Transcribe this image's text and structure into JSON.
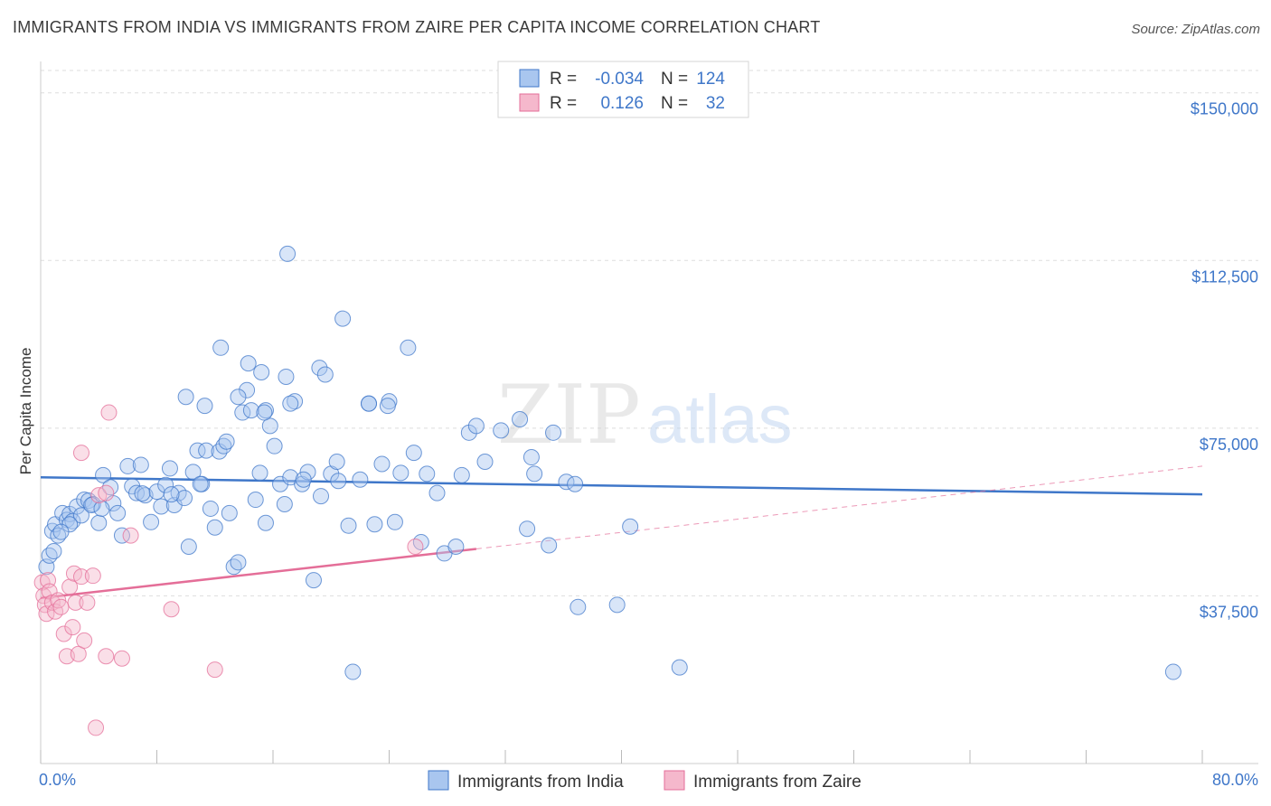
{
  "title": "IMMIGRANTS FROM INDIA VS IMMIGRANTS FROM ZAIRE PER CAPITA INCOME CORRELATION CHART",
  "source": "Source: ZipAtlas.com",
  "watermark": {
    "zip": "ZIP",
    "atlas": "atlas"
  },
  "colors": {
    "india": "#3f77c9",
    "india_fill": "#a9c6ef",
    "zaire": "#e46e98",
    "zaire_fill": "#f5b8cc",
    "grid": "#dddddd",
    "axis_text": "#3f77c9"
  },
  "legend": {
    "rows": [
      {
        "series": "india",
        "r_label": "R =",
        "r_value": "-0.034",
        "n_label": "N =",
        "n_value": "124"
      },
      {
        "series": "zaire",
        "r_label": "R =",
        "r_value": "0.126",
        "n_label": "N =",
        "n_value": "32"
      }
    ]
  },
  "chart_data": {
    "type": "scatter",
    "title": "IMMIGRANTS FROM INDIA VS IMMIGRANTS FROM ZAIRE PER CAPITA INCOME CORRELATION CHART",
    "xlabel": "",
    "ylabel": "Per Capita Income",
    "xlim": [
      0,
      80
    ],
    "ylim": [
      0,
      155000
    ],
    "x_tick_labels": [
      "0.0%",
      "80.0%"
    ],
    "y_ticks": [
      37500,
      75000,
      112500,
      150000
    ],
    "y_tick_labels": [
      "$37,500",
      "$75,000",
      "$112,500",
      "$150,000"
    ],
    "series": [
      {
        "name": "Immigrants from India",
        "color": "#3f77c9",
        "trend": {
          "x": [
            0,
            80
          ],
          "y": [
            64000,
            60200
          ],
          "style": "solid"
        },
        "points": [
          [
            0.4,
            44000
          ],
          [
            0.6,
            46500
          ],
          [
            0.8,
            52000
          ],
          [
            1.0,
            53500
          ],
          [
            1.2,
            51000
          ],
          [
            1.5,
            56000
          ],
          [
            1.8,
            54500
          ],
          [
            2.0,
            55800
          ],
          [
            2.2,
            54200
          ],
          [
            2.5,
            57500
          ],
          [
            2.8,
            55500
          ],
          [
            3.0,
            59000
          ],
          [
            3.3,
            58800
          ],
          [
            3.6,
            58000
          ],
          [
            4.0,
            53800
          ],
          [
            4.3,
            64500
          ],
          [
            4.8,
            61800
          ],
          [
            5.0,
            58200
          ],
          [
            5.3,
            56000
          ],
          [
            5.6,
            51000
          ],
          [
            6.0,
            66500
          ],
          [
            6.3,
            62000
          ],
          [
            6.6,
            60500
          ],
          [
            6.9,
            66800
          ],
          [
            7.2,
            60000
          ],
          [
            7.6,
            54000
          ],
          [
            8.0,
            60800
          ],
          [
            8.3,
            57500
          ],
          [
            8.6,
            62300
          ],
          [
            8.9,
            66000
          ],
          [
            9.2,
            57800
          ],
          [
            9.5,
            60500
          ],
          [
            9.9,
            59400
          ],
          [
            10.2,
            48500
          ],
          [
            10.5,
            65200
          ],
          [
            10.8,
            70000
          ],
          [
            11.1,
            62500
          ],
          [
            11.4,
            70000
          ],
          [
            11.7,
            57000
          ],
          [
            12.0,
            52800
          ],
          [
            12.3,
            69800
          ],
          [
            12.6,
            71000
          ],
          [
            13.0,
            56000
          ],
          [
            13.3,
            44000
          ],
          [
            13.6,
            45000
          ],
          [
            13.9,
            78500
          ],
          [
            14.2,
            83500
          ],
          [
            14.5,
            79000
          ],
          [
            14.8,
            59000
          ],
          [
            15.1,
            65000
          ],
          [
            15.5,
            53800
          ],
          [
            15.8,
            75500
          ],
          [
            16.1,
            71000
          ],
          [
            16.5,
            62500
          ],
          [
            16.8,
            58000
          ],
          [
            17.2,
            64000
          ],
          [
            17.5,
            81000
          ],
          [
            18.0,
            62500
          ],
          [
            18.4,
            65200
          ],
          [
            18.8,
            41000
          ],
          [
            19.2,
            88500
          ],
          [
            19.6,
            87000
          ],
          [
            20.0,
            64800
          ],
          [
            20.4,
            67500
          ],
          [
            20.8,
            99500
          ],
          [
            21.2,
            53200
          ],
          [
            22.0,
            63500
          ],
          [
            22.6,
            80500
          ],
          [
            23.0,
            53500
          ],
          [
            23.5,
            67000
          ],
          [
            24.0,
            81000
          ],
          [
            24.4,
            54000
          ],
          [
            24.8,
            65000
          ],
          [
            25.3,
            93000
          ],
          [
            25.7,
            69500
          ],
          [
            26.2,
            49500
          ],
          [
            27.3,
            60500
          ],
          [
            27.8,
            47000
          ],
          [
            28.6,
            48500
          ],
          [
            29.0,
            64500
          ],
          [
            29.5,
            74000
          ],
          [
            30.0,
            75500
          ],
          [
            30.6,
            67500
          ],
          [
            31.7,
            74500
          ],
          [
            33.0,
            77000
          ],
          [
            33.5,
            52500
          ],
          [
            33.8,
            68500
          ],
          [
            34.0,
            64800
          ],
          [
            35.3,
            74000
          ],
          [
            35.0,
            48800
          ],
          [
            36.2,
            63000
          ],
          [
            36.8,
            62500
          ],
          [
            37.0,
            35000
          ],
          [
            39.7,
            35500
          ],
          [
            40.6,
            53000
          ],
          [
            17.0,
            114000
          ],
          [
            15.5,
            79000
          ],
          [
            12.4,
            93000
          ],
          [
            14.3,
            89500
          ],
          [
            15.2,
            87500
          ],
          [
            16.9,
            86500
          ],
          [
            21.5,
            20500
          ],
          [
            13.6,
            82000
          ],
          [
            10.0,
            82000
          ],
          [
            11.3,
            80000
          ],
          [
            22.6,
            80500
          ],
          [
            23.9,
            80000
          ],
          [
            15.4,
            78500
          ],
          [
            17.2,
            80500
          ],
          [
            12.8,
            72000
          ],
          [
            11.0,
            62500
          ],
          [
            9.0,
            60200
          ],
          [
            7.0,
            60400
          ],
          [
            3.5,
            57800
          ],
          [
            4.2,
            57000
          ],
          [
            2.0,
            53500
          ],
          [
            1.4,
            51800
          ],
          [
            0.9,
            47500
          ],
          [
            44.0,
            21500
          ],
          [
            78.0,
            20500
          ],
          [
            18.1,
            63500
          ],
          [
            26.6,
            64800
          ],
          [
            20.5,
            63200
          ],
          [
            19.3,
            59800
          ]
        ]
      },
      {
        "name": "Immigrants from Zaire",
        "color": "#e46e98",
        "trend": {
          "x": [
            0,
            30
          ],
          "y": [
            37000,
            48000
          ],
          "style": "solid",
          "extended": {
            "x": [
              30,
              80
            ],
            "y": [
              48000,
              66500
            ],
            "style": "dashed"
          }
        },
        "points": [
          [
            0.1,
            40500
          ],
          [
            0.2,
            37500
          ],
          [
            0.3,
            35500
          ],
          [
            0.4,
            33500
          ],
          [
            0.5,
            41000
          ],
          [
            0.6,
            38500
          ],
          [
            0.8,
            36000
          ],
          [
            1.0,
            34000
          ],
          [
            1.2,
            36500
          ],
          [
            1.4,
            35000
          ],
          [
            1.6,
            29000
          ],
          [
            1.8,
            24000
          ],
          [
            2.0,
            39500
          ],
          [
            2.2,
            30500
          ],
          [
            2.3,
            42500
          ],
          [
            2.4,
            36000
          ],
          [
            2.6,
            24500
          ],
          [
            2.8,
            41800
          ],
          [
            3.0,
            27500
          ],
          [
            3.2,
            36000
          ],
          [
            3.6,
            42000
          ],
          [
            4.0,
            60000
          ],
          [
            4.5,
            24000
          ],
          [
            4.7,
            78500
          ],
          [
            5.6,
            23500
          ],
          [
            6.2,
            51000
          ],
          [
            9.0,
            34500
          ],
          [
            12.0,
            21000
          ],
          [
            25.8,
            48500
          ],
          [
            2.8,
            69500
          ],
          [
            3.8,
            8000
          ],
          [
            4.5,
            60500
          ]
        ]
      }
    ]
  },
  "bottom_legend": [
    {
      "series": "india",
      "label": "Immigrants from India"
    },
    {
      "series": "zaire",
      "label": "Immigrants from Zaire"
    }
  ]
}
